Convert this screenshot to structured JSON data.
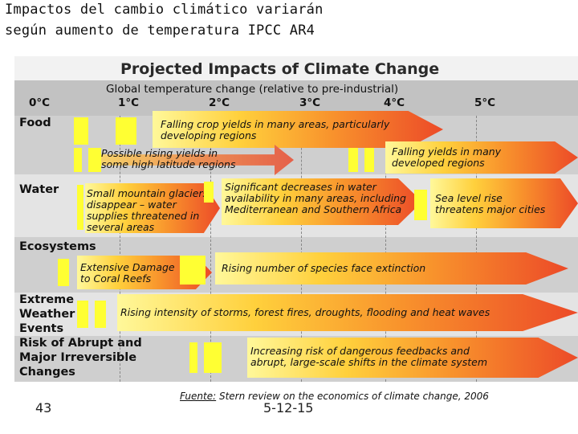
{
  "slide": {
    "title_line1": "Impactos del cambio climático variarán",
    "title_line2": "según aumento de temperatura  IPCC AR4"
  },
  "figure": {
    "title": "Projected Impacts of Climate Change",
    "temperature_caption": "Global temperature change (relative to pre-industrial)",
    "temperatures": [
      "0°C",
      "1°C",
      "2°C",
      "3°C",
      "4°C",
      "5°C"
    ],
    "sectors": [
      {
        "id": "food",
        "label": "Food"
      },
      {
        "id": "water",
        "label": "Water"
      },
      {
        "id": "ecosystems",
        "label": "Ecosystems"
      },
      {
        "id": "extreme",
        "label": "Extreme\nWeather\nEvents"
      },
      {
        "id": "abrupt",
        "label": "Risk of Abrupt and\nMajor Irreversible\nChanges"
      }
    ],
    "impacts": {
      "food_falling": "Falling crop yields in many areas, particularly\ndeveloping regions",
      "food_rising": "Possible rising yields in\nsome high latitude regions",
      "food_developed": "Falling yields in many\ndeveloped regions",
      "water_glaciers": "Small mountain glaciers\ndisappear – water\nsupplies threatened in\nseveral areas",
      "water_decrease": "Significant decreases in water\navailability in many areas, including\nMediterranean and Southern Africa",
      "water_sea": "Sea level rise\nthreatens major cities",
      "eco_coral": "Extensive Damage\nto Coral Reefs",
      "eco_species": "Rising number of species face extinction",
      "extreme": "Rising intensity of storms, forest fires, droughts, flooding and heat waves",
      "abrupt": "Increasing risk of dangerous feedbacks and\nabrupt, large-scale shifts in the climate system"
    }
  },
  "footer": {
    "slide_number": "43",
    "date": "5-12-15",
    "source_label": "Fuente:",
    "source_text": " Stern review on the economics of climate change, 2006"
  }
}
